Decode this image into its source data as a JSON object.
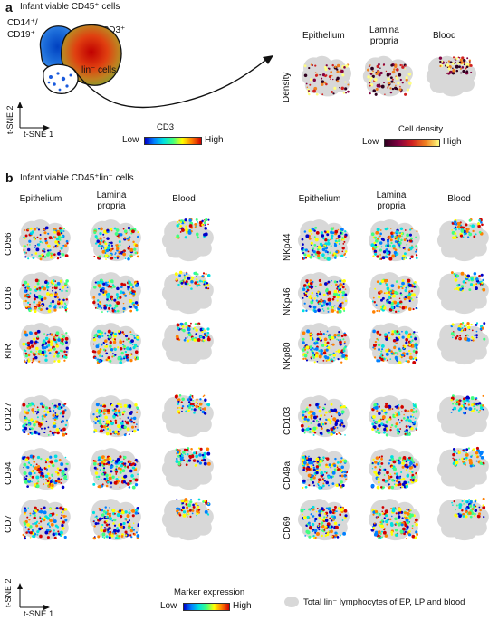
{
  "panel_a": {
    "letter": "a",
    "title": "Infant viable CD45⁺ cells",
    "cluster_labels": {
      "cd14": "CD14⁺/",
      "cd19": "CD19⁺",
      "cd3": "CD3⁺",
      "lin": "lin⁻ cells"
    },
    "axes": {
      "x": "t-SNE 1",
      "y": "t-SNE 2"
    },
    "cd3_bar": {
      "title": "CD3",
      "low": "Low",
      "high": "High"
    },
    "density_label": "Density",
    "tissues": [
      "Epithelium",
      "Lamina\npropria",
      "Blood"
    ],
    "density_bar": {
      "title": "Cell density",
      "low": "Low",
      "high": "High"
    }
  },
  "panel_b": {
    "letter": "b",
    "title": "Infant viable CD45⁺lin⁻ cells",
    "col_headers_left": [
      "Epithelium",
      "Lamina\npropria",
      "Blood"
    ],
    "col_headers_right": [
      "Epithelium",
      "Lamina\npropria",
      "Blood"
    ],
    "markers_left": [
      "CD56",
      "CD16",
      "KIR",
      "CD127",
      "CD94",
      "CD7"
    ],
    "markers_right": [
      "NKp44",
      "NKp46",
      "NKp80",
      "CD103",
      "CD49a",
      "CD69"
    ],
    "axes": {
      "x": "t-SNE 1",
      "y": "t-SNE 2"
    },
    "marker_bar": {
      "title": "Marker expression",
      "low": "Low",
      "high": "High"
    },
    "legend_text": "Total lin⁻ lymphocytes of EP, LP and blood"
  },
  "colors": {
    "jet": [
      "#0000c8",
      "#0080ff",
      "#00e0e0",
      "#40ff80",
      "#ffff00",
      "#ff8000",
      "#d00000"
    ],
    "density": [
      "#300020",
      "#800040",
      "#d02020",
      "#f08020",
      "#ffff80"
    ],
    "background_cells": "#d8d8d8"
  }
}
